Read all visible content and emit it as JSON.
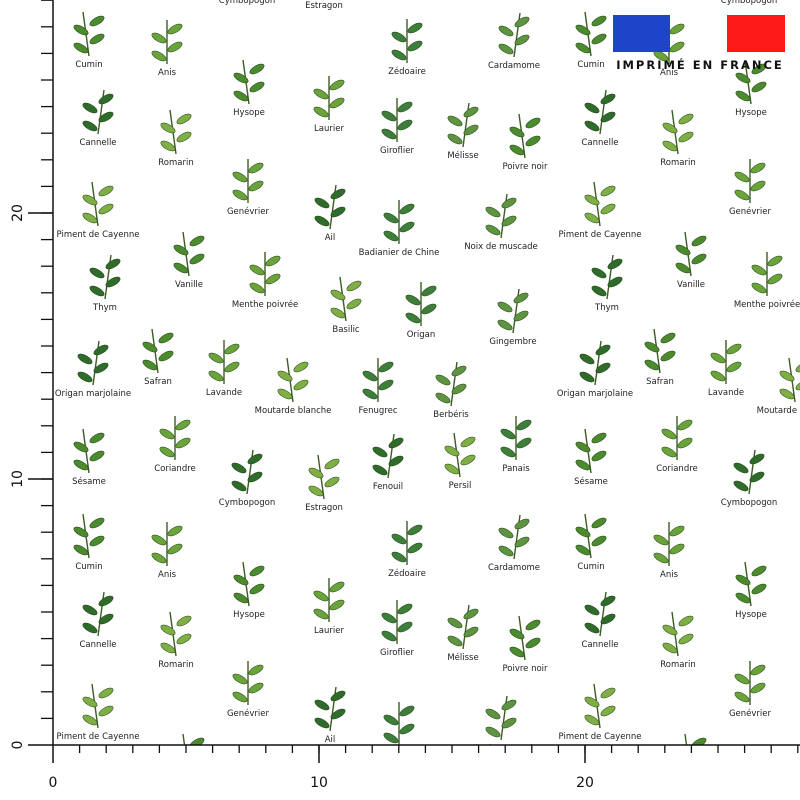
{
  "ruler": {
    "x_ticks": [
      0,
      10,
      20
    ],
    "y_ticks": [
      0,
      10,
      20
    ]
  },
  "banner": {
    "text": "IMPRIMÉ EN FRANCE"
  },
  "herbs": [
    "Cumin",
    "Anis",
    "Cymbopogon",
    "Estragon",
    "Zédoaire",
    "Cardamome",
    "Hysope",
    "Laurier",
    "Cannelle",
    "Romarin",
    "Giroflier",
    "Mélisse",
    "Poivre noir",
    "Genévrier",
    "Ail",
    "Piment de Cayenne",
    "Badianier de Chine",
    "Noix de muscade",
    "Vanille",
    "Menthe poivrée",
    "Thym",
    "Basilic",
    "Origan",
    "Gingembre",
    "Safran",
    "Lavande",
    "Origan marjolaine",
    "Moutarde blanche",
    "Fenugrec",
    "Berbéris",
    "Sésame",
    "Coriandre",
    "Fenouil",
    "Persil",
    "Panais"
  ]
}
